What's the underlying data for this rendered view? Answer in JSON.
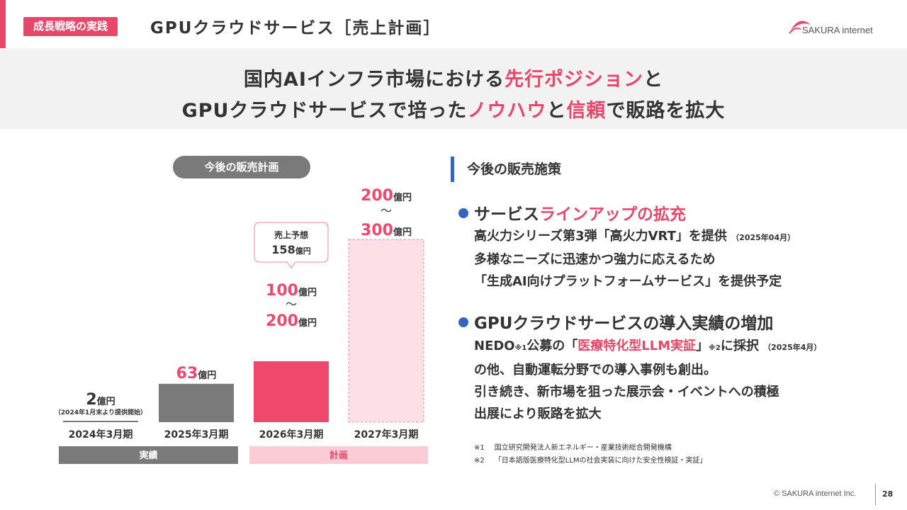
{
  "header": {
    "section_tag": "成長戦略の実践",
    "title": "GPUクラウドサービス［売上計画］",
    "logo_text": "SAKURA internet"
  },
  "hero": {
    "line1_a": "国内AIインフラ市場における",
    "line1_b": "先行ポジション",
    "line1_c": "と",
    "line2_a": "GPUクラウドサービスで培った",
    "line2_b": "ノウハウ",
    "line2_c": "と",
    "line2_d": "信頼",
    "line2_e": "で販路を拡大"
  },
  "chart_data": {
    "type": "bar",
    "title": "今後の販売計画",
    "unit": "億円",
    "categories": [
      "2024年3月期",
      "2025年3月期",
      "2026年3月期",
      "2027年3月期"
    ],
    "values": [
      2,
      63,
      200,
      300
    ],
    "ranges": [
      null,
      null,
      [
        100,
        200
      ],
      [
        200,
        300
      ]
    ],
    "labels": [
      {
        "value": "2",
        "unit": "億円",
        "note": "（2024年1月末より提供開始）"
      },
      {
        "value": "63",
        "unit": "億円"
      },
      {
        "value_low": "100",
        "value_high": "200",
        "unit": "億円",
        "sep": "～"
      },
      {
        "value_low": "200",
        "value_high": "300",
        "unit": "億円",
        "sep": "～"
      }
    ],
    "callout": {
      "label": "売上予想",
      "value": "158",
      "unit": "億円"
    },
    "groups": [
      {
        "label": "実績",
        "from": 0,
        "to": 1
      },
      {
        "label": "計画",
        "from": 2,
        "to": 3
      }
    ],
    "ylim": [
      0,
      300
    ],
    "colors": {
      "actual": "#7a7a7a",
      "plan": "#f0486c",
      "plan_light": "#fde0e6",
      "dark_label": "#333333"
    }
  },
  "measures": {
    "heading": "今後の販売施策",
    "bullet1_a": "サービス",
    "bullet1_b": "ラインアップの拡充",
    "b1_line1": "高火力シリーズ第3弾「高火力VRT」を提供",
    "b1_line1_note": "（2025年04月）",
    "b1_line2": "多様なニーズに迅速かつ強力に応えるため",
    "b1_line3": "「生成AI向けプラットフォームサービス」を提供予定",
    "bullet2": "GPUクラウドサービスの導入実績の増加",
    "b2_l1_a": "NEDO",
    "b2_l1_sup1": "※1",
    "b2_l1_b": "公募の「",
    "b2_l1_c": "医療特化型LLM実証",
    "b2_l1_d": "」",
    "b2_l1_sup2": "※2",
    "b2_l1_e": "に採択",
    "b2_l1_note": "（2025年4月）",
    "b2_line2": "の他、自動運転分野での導入事例も創出。",
    "b2_line3": "引き続き、新市場を狙った展示会・イベントへの積極",
    "b2_line4": "出展により販路を拡大"
  },
  "footnotes": [
    {
      "mark": "※1",
      "text": "国立研究開発法人新エネルギー・産業技術総合開発機構"
    },
    {
      "mark": "※2",
      "text": "「日本語版医療特化型LLMの社会実装に向けた安全性検証・実証」"
    }
  ],
  "footer": {
    "copyright": "© SAKURA internet Inc.",
    "page": "28"
  }
}
